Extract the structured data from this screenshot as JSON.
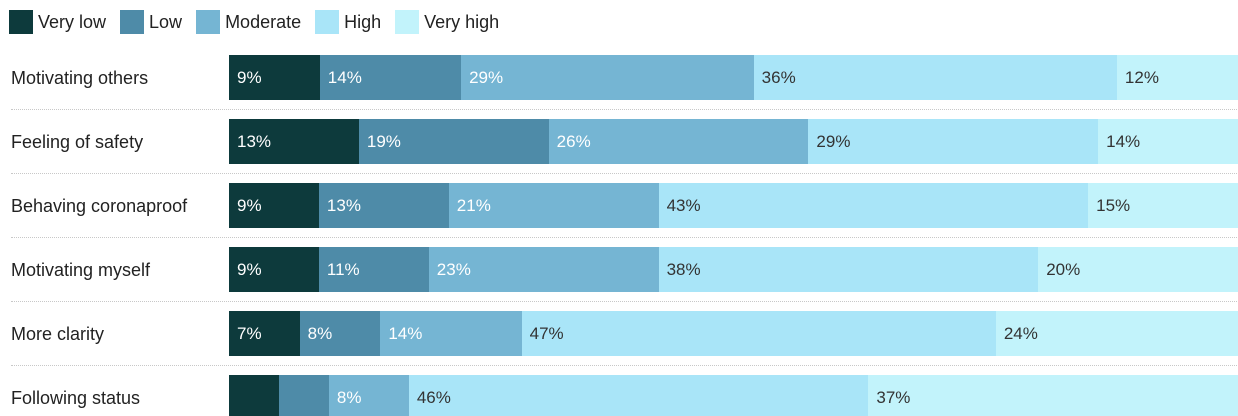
{
  "chart_data": {
    "type": "bar",
    "orientation": "horizontal",
    "stacked": true,
    "normalized": true,
    "categories": [
      "Motivating others",
      "Feeling of safety",
      "Behaving coronaproof",
      "Motivating myself",
      "More clarity",
      "Following status"
    ],
    "series": [
      {
        "name": "Very low",
        "color": "#0d3a3c",
        "values": [
          9,
          13,
          9,
          9,
          7,
          5
        ]
      },
      {
        "name": "Low",
        "color": "#4e8ba8",
        "values": [
          14,
          19,
          13,
          11,
          8,
          5
        ]
      },
      {
        "name": "Moderate",
        "color": "#75b5d3",
        "values": [
          29,
          26,
          21,
          23,
          14,
          8
        ]
      },
      {
        "name": "High",
        "color": "#a9e5f8",
        "values": [
          36,
          29,
          43,
          38,
          47,
          46
        ]
      },
      {
        "name": "Very high",
        "color": "#c2f3fb",
        "values": [
          12,
          14,
          15,
          20,
          24,
          37
        ]
      }
    ],
    "data_labels": [
      [
        "9%",
        "14%",
        "29%",
        "36%",
        "12%"
      ],
      [
        "13%",
        "19%",
        "26%",
        "29%",
        "14%"
      ],
      [
        "9%",
        "13%",
        "21%",
        "43%",
        "15%"
      ],
      [
        "9%",
        "11%",
        "23%",
        "38%",
        "20%"
      ],
      [
        "7%",
        "8%",
        "14%",
        "47%",
        "24%"
      ],
      [
        "",
        "",
        "8%",
        "46%",
        "37%"
      ]
    ],
    "label_colors": [
      "#ffffff",
      "#ffffff",
      "#ffffff",
      "#333333",
      "#333333"
    ],
    "legend_position": "top-left",
    "title": "",
    "xlabel": "",
    "ylabel": "",
    "grid": false
  }
}
